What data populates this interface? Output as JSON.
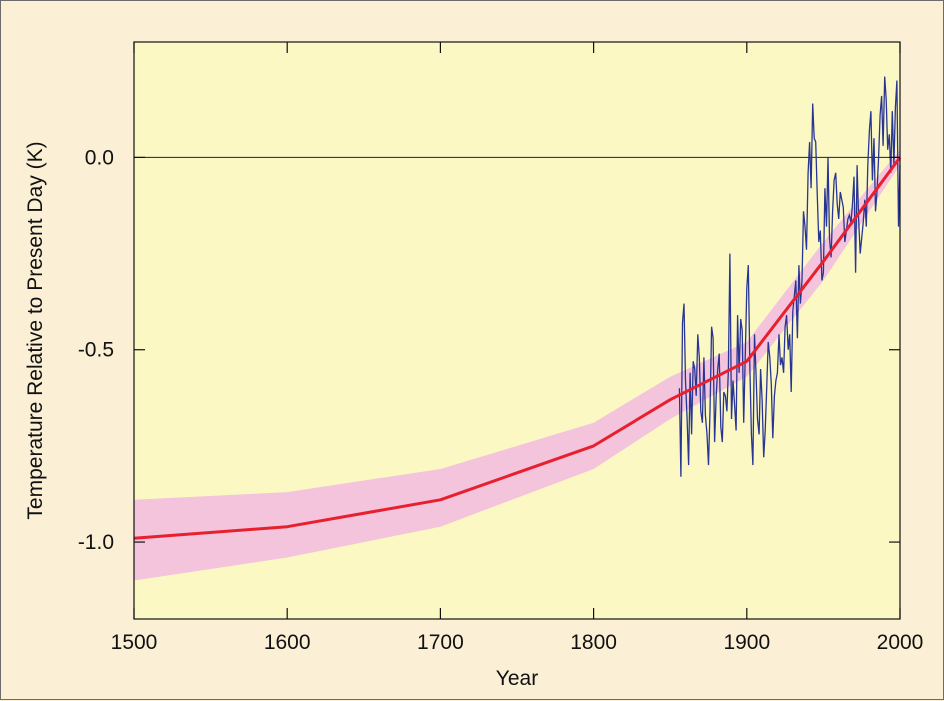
{
  "chart_data": {
    "type": "line",
    "xlabel": "Year",
    "ylabel": "Temperature Relative to Present Day (K)",
    "xlim": [
      1500,
      2000
    ],
    "ylim": [
      -1.2,
      0.3
    ],
    "x_ticks": [
      1500,
      1600,
      1700,
      1800,
      1900,
      2000
    ],
    "x_tick_labels": [
      "1500",
      "1600",
      "1700",
      "1800",
      "1900",
      "2000"
    ],
    "y_ticks": [
      -1.0,
      -0.5,
      0.0
    ],
    "y_tick_labels": [
      "-1.0",
      "-0.5",
      "0.0"
    ],
    "zero_line": 0.0,
    "colors": {
      "plot_bg": "#fcf8c4",
      "outer_bg": "#fbf0d6",
      "band": "#f4c3dc",
      "reconstruction": "#e8202e",
      "instrumental": "#283593"
    },
    "series": [
      {
        "kind": "uncertainty-band",
        "x": [
          1500,
          1600,
          1700,
          1800,
          1850,
          1900,
          1950,
          2000
        ],
        "lower": [
          -1.1,
          -1.04,
          -0.96,
          -0.81,
          -0.68,
          -0.57,
          -0.32,
          -0.02
        ],
        "upper": [
          -0.89,
          -0.87,
          -0.81,
          -0.69,
          -0.57,
          -0.48,
          -0.22,
          0.02
        ]
      },
      {
        "kind": "reconstruction",
        "x": [
          1500,
          1600,
          1700,
          1800,
          1850,
          1900,
          1950,
          2000
        ],
        "y": [
          -0.99,
          -0.96,
          -0.89,
          -0.75,
          -0.63,
          -0.53,
          -0.27,
          0.0
        ]
      },
      {
        "kind": "instrumental",
        "x": [
          1856,
          1857,
          1858,
          1859,
          1860,
          1861,
          1862,
          1863,
          1864,
          1865,
          1866,
          1867,
          1868,
          1869,
          1870,
          1871,
          1872,
          1873,
          1874,
          1875,
          1876,
          1877,
          1878,
          1879,
          1880,
          1881,
          1882,
          1883,
          1884,
          1885,
          1886,
          1887,
          1888,
          1889,
          1890,
          1891,
          1892,
          1893,
          1894,
          1895,
          1896,
          1897,
          1898,
          1899,
          1900,
          1901,
          1902,
          1903,
          1904,
          1905,
          1906,
          1907,
          1908,
          1909,
          1910,
          1911,
          1912,
          1913,
          1914,
          1915,
          1916,
          1917,
          1918,
          1919,
          1920,
          1921,
          1922,
          1923,
          1924,
          1925,
          1926,
          1927,
          1928,
          1929,
          1930,
          1931,
          1932,
          1933,
          1934,
          1935,
          1936,
          1937,
          1938,
          1939,
          1940,
          1941,
          1942,
          1943,
          1944,
          1945,
          1946,
          1947,
          1948,
          1949,
          1950,
          1951,
          1952,
          1953,
          1954,
          1955,
          1956,
          1957,
          1958,
          1959,
          1960,
          1961,
          1962,
          1963,
          1964,
          1965,
          1966,
          1967,
          1968,
          1969,
          1970,
          1971,
          1972,
          1973,
          1974,
          1975,
          1976,
          1977,
          1978,
          1979,
          1980,
          1981,
          1982,
          1983,
          1984,
          1985,
          1986,
          1987,
          1988,
          1989,
          1990,
          1991,
          1992,
          1993,
          1994,
          1995,
          1996,
          1997,
          1998,
          1999,
          2000
        ],
        "y": [
          -0.6,
          -0.83,
          -0.43,
          -0.38,
          -0.58,
          -0.68,
          -0.8,
          -0.56,
          -0.72,
          -0.53,
          -0.55,
          -0.62,
          -0.46,
          -0.52,
          -0.66,
          -0.69,
          -0.52,
          -0.67,
          -0.72,
          -0.8,
          -0.66,
          -0.44,
          -0.47,
          -0.74,
          -0.62,
          -0.55,
          -0.51,
          -0.7,
          -0.74,
          -0.61,
          -0.62,
          -0.66,
          -0.55,
          -0.25,
          -0.68,
          -0.58,
          -0.64,
          -0.71,
          -0.41,
          -0.56,
          -0.42,
          -0.45,
          -0.69,
          -0.51,
          -0.34,
          -0.28,
          -0.55,
          -0.72,
          -0.8,
          -0.46,
          -0.56,
          -0.68,
          -0.72,
          -0.55,
          -0.63,
          -0.78,
          -0.71,
          -0.6,
          -0.48,
          -0.52,
          -0.59,
          -0.73,
          -0.62,
          -0.58,
          -0.56,
          -0.46,
          -0.54,
          -0.52,
          -0.56,
          -0.44,
          -0.41,
          -0.5,
          -0.46,
          -0.61,
          -0.4,
          -0.36,
          -0.32,
          -0.47,
          -0.28,
          -0.38,
          -0.32,
          -0.14,
          -0.18,
          -0.24,
          -0.04,
          0.04,
          -0.08,
          0.14,
          0.05,
          0.04,
          -0.1,
          -0.22,
          -0.19,
          -0.32,
          -0.3,
          -0.08,
          -0.18,
          0.0,
          -0.21,
          -0.26,
          -0.14,
          -0.06,
          -0.04,
          -0.12,
          -0.16,
          -0.09,
          -0.11,
          -0.13,
          -0.22,
          -0.19,
          -0.16,
          -0.15,
          -0.17,
          -0.12,
          -0.05,
          -0.3,
          -0.02,
          -0.16,
          -0.25,
          -0.21,
          -0.17,
          -0.11,
          -0.18,
          -0.02,
          0.07,
          0.12,
          -0.06,
          0.05,
          -0.14,
          -0.09,
          0.0,
          0.11,
          0.16,
          0.03,
          0.21,
          0.15,
          0.02,
          0.06,
          -0.04,
          0.12,
          -0.02,
          0.13,
          0.2,
          -0.18,
          -0.02
        ]
      }
    ]
  }
}
